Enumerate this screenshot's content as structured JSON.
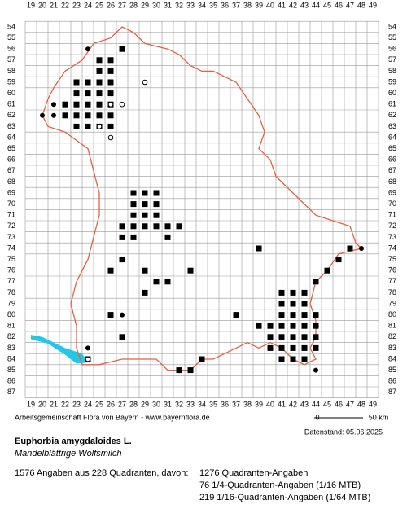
{
  "grid": {
    "columns": [
      19,
      20,
      21,
      22,
      23,
      24,
      25,
      26,
      27,
      28,
      29,
      30,
      31,
      32,
      33,
      34,
      35,
      36,
      37,
      38,
      39,
      40,
      41,
      42,
      43,
      44,
      45,
      46,
      47,
      48,
      49
    ],
    "rows": [
      54,
      55,
      56,
      57,
      58,
      59,
      60,
      61,
      62,
      63,
      64,
      65,
      66,
      67,
      68,
      69,
      70,
      71,
      72,
      73,
      74,
      75,
      76,
      77,
      78,
      79,
      80,
      81,
      82,
      83,
      84,
      85,
      86,
      87
    ]
  },
  "scale": {
    "start": "0",
    "end": "50 km"
  },
  "footer": {
    "credit": "Arbeitsgemeinschaft Flora von Bayern - www.bayernflora.de",
    "date": "Datenstand: 05.06.2025"
  },
  "species": {
    "name": "Euphorbia amygdaloides L.",
    "common_name": "Mandelblättrige Wolfsmilch"
  },
  "stats": {
    "summary": "1576 Angaben aus 228 Quadranten, davon:",
    "lines": [
      "1276 Quadranten-Angaben",
      "76 1/4-Quadranten-Angaben (1/16 MTB)",
      "219 1/16-Quadranten-Angaben (1/64 MTB)"
    ]
  }
}
